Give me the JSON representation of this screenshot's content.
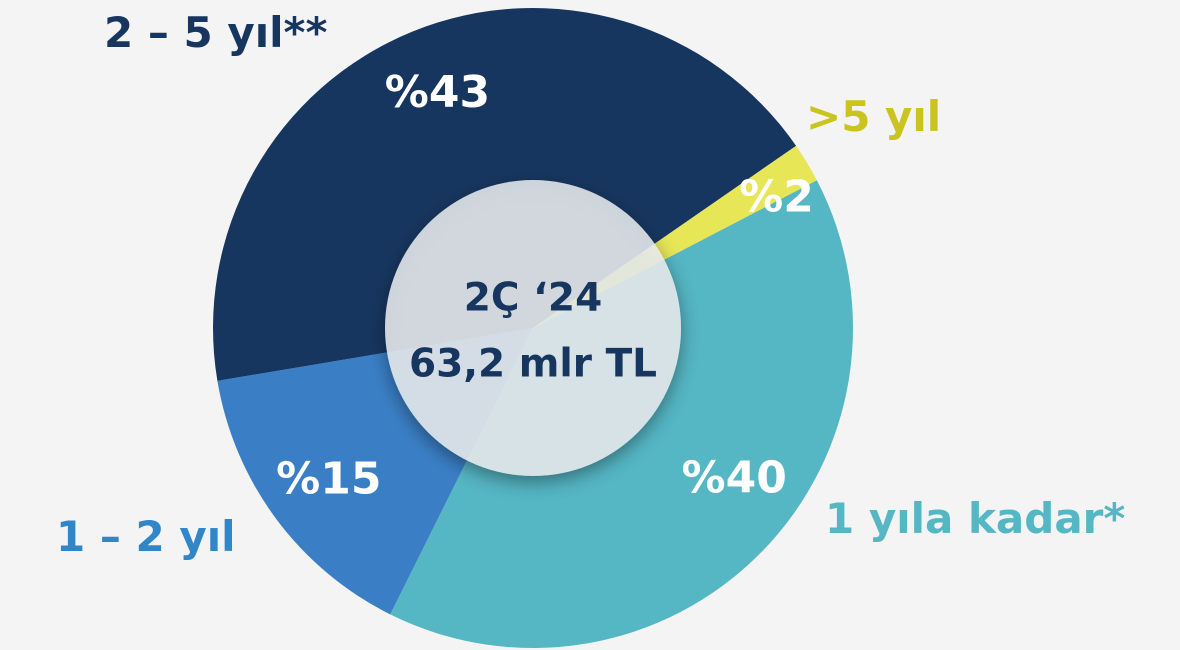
{
  "chart_data": {
    "type": "pie",
    "style": "donut",
    "center_label": {
      "line1": "2Ç ‘24",
      "line2": "63,2 mlr TL"
    },
    "slices": [
      {
        "name": "1 yıla kadar*",
        "value": 40,
        "label": "%40",
        "color": "#55b6c4"
      },
      {
        "name": "1 – 2 yıl",
        "value": 15,
        "label": "%15",
        "color": "#3a7fc6"
      },
      {
        "name": "2 – 5 yıl**",
        "value": 43,
        "label": "%43",
        "color": "#17365f"
      },
      {
        "name": ">5 yıl",
        "value": 2,
        "label": "%2",
        "color": "#e6e657"
      }
    ],
    "legend_colors": {
      "1 yıla kadar*": "#55b6c4",
      "1 – 2 yıl": "#2f86c8",
      "2 – 5 yıl**": "#17365f",
      ">5 yıl": "#c9c41e"
    }
  }
}
